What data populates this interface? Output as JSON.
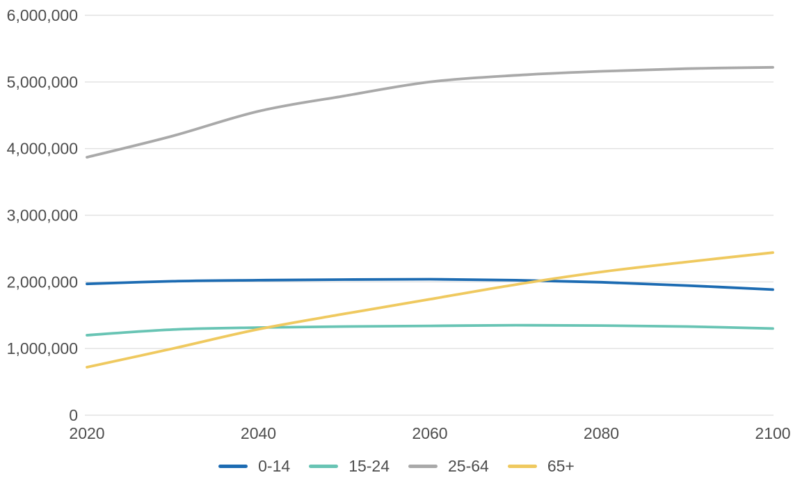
{
  "chart_data": {
    "type": "line",
    "title": "",
    "xlabel": "",
    "ylabel": "",
    "x": [
      2020,
      2030,
      2040,
      2050,
      2060,
      2070,
      2080,
      2090,
      2100
    ],
    "series": [
      {
        "name": "0-14",
        "color": "#1c6bb2",
        "values": [
          1970000,
          2010000,
          2025000,
          2035000,
          2040000,
          2025000,
          1995000,
          1945000,
          1885000
        ]
      },
      {
        "name": "15-24",
        "color": "#68c4b4",
        "values": [
          1200000,
          1285000,
          1315000,
          1330000,
          1340000,
          1350000,
          1345000,
          1330000,
          1300000
        ]
      },
      {
        "name": "25-64",
        "color": "#a9a9a9",
        "values": [
          3870000,
          4190000,
          4560000,
          4790000,
          5000000,
          5100000,
          5160000,
          5200000,
          5220000
        ]
      },
      {
        "name": "65+",
        "color": "#efc95f",
        "values": [
          720000,
          1000000,
          1290000,
          1520000,
          1740000,
          1960000,
          2150000,
          2300000,
          2440000
        ]
      }
    ],
    "xlim": [
      2020,
      2100
    ],
    "ylim": [
      0,
      6000000
    ],
    "xticks": [
      2020,
      2040,
      2060,
      2080,
      2100
    ],
    "yticks": [
      0,
      1000000,
      2000000,
      3000000,
      4000000,
      5000000,
      6000000
    ],
    "ytick_labels": [
      "0",
      "1,000,000",
      "2,000,000",
      "3,000,000",
      "4,000,000",
      "5,000,000",
      "6,000,000"
    ],
    "grid": "horizontal",
    "grid_color": "#e2e2e2",
    "tick_color": "#4d4d4d",
    "legend_position": "bottom"
  }
}
